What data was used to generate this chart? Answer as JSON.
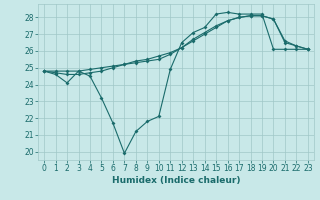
{
  "title": "",
  "xlabel": "Humidex (Indice chaleur)",
  "ylabel": "",
  "background_color": "#c8e8e8",
  "grid_color": "#a0c8c8",
  "line_color": "#1a6b6b",
  "x": [
    0,
    1,
    2,
    3,
    4,
    5,
    6,
    7,
    8,
    9,
    10,
    11,
    12,
    13,
    14,
    15,
    16,
    17,
    18,
    19,
    20,
    21,
    22,
    23
  ],
  "series1": [
    24.8,
    24.6,
    24.1,
    24.8,
    24.5,
    23.2,
    21.7,
    19.9,
    21.2,
    21.8,
    22.1,
    24.9,
    26.5,
    27.1,
    27.4,
    28.2,
    28.3,
    28.2,
    28.2,
    28.2,
    26.1,
    26.1,
    26.1,
    26.1
  ],
  "series2": [
    24.8,
    24.8,
    24.8,
    24.8,
    24.9,
    25.0,
    25.1,
    25.2,
    25.3,
    25.4,
    25.5,
    25.8,
    26.2,
    26.7,
    27.1,
    27.5,
    27.8,
    28.0,
    28.1,
    28.1,
    27.9,
    26.5,
    26.3,
    26.1
  ],
  "series3": [
    24.8,
    24.7,
    24.6,
    24.6,
    24.7,
    24.8,
    25.0,
    25.2,
    25.4,
    25.5,
    25.7,
    25.9,
    26.2,
    26.6,
    27.0,
    27.4,
    27.8,
    28.0,
    28.1,
    28.1,
    27.9,
    26.6,
    26.3,
    26.1
  ],
  "ylim": [
    19.5,
    28.8
  ],
  "yticks": [
    20,
    21,
    22,
    23,
    24,
    25,
    26,
    27,
    28
  ],
  "xlim": [
    -0.5,
    23.5
  ],
  "xticks": [
    0,
    1,
    2,
    3,
    4,
    5,
    6,
    7,
    8,
    9,
    10,
    11,
    12,
    13,
    14,
    15,
    16,
    17,
    18,
    19,
    20,
    21,
    22,
    23
  ],
  "marker_size": 2.0,
  "line_width": 0.8,
  "tick_fontsize": 5.5,
  "xlabel_fontsize": 6.5
}
